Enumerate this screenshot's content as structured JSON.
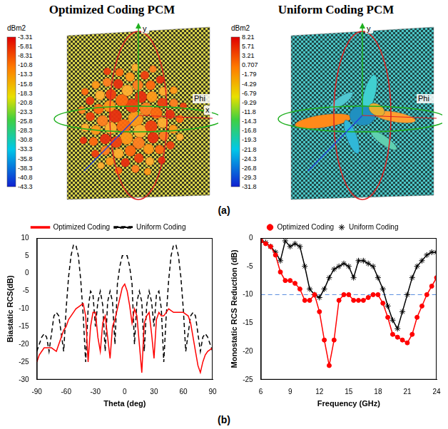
{
  "panel_labels": [
    "(a)",
    "(b)"
  ],
  "renders": [
    {
      "title": "Optimized Coding PCM",
      "axis_labels": [
        "y",
        "x",
        "Phi"
      ],
      "colorbar": {
        "unit": "dBm2",
        "range": [
          -43.3,
          -3.31
        ],
        "ticks": [
          -3.31,
          -5.81,
          -8.31,
          -10.8,
          -13.3,
          -15.8,
          -18.3,
          -20.8,
          -23.3,
          -25.8,
          -28.3,
          -30.8,
          -33.3,
          -35.8,
          -38.3,
          -40.8,
          -43.3
        ]
      }
    },
    {
      "title": "Uniform Coding PCM",
      "axis_labels": [
        "y",
        "Phi"
      ],
      "colorbar": {
        "unit": "dBm2",
        "range": [
          -31.8,
          8.21
        ],
        "ticks": [
          8.21,
          5.71,
          3.21,
          0.707,
          -1.79,
          -4.29,
          -6.79,
          -9.29,
          -11.8,
          -14.3,
          -16.8,
          -19.3,
          -21.8,
          -24.3,
          -26.8,
          -29.3,
          -31.8
        ]
      }
    }
  ],
  "chart_data": [
    {
      "type": "line",
      "x_label": "Theta (deg)",
      "y_label": "Biastatic RCS(dB)",
      "x": [
        -90,
        -87.5,
        -85,
        -82.5,
        -80,
        -77.5,
        -75,
        -72.5,
        -70,
        -67.5,
        -65,
        -62.5,
        -60,
        -57.5,
        -55,
        -52.5,
        -50,
        -47.5,
        -45,
        -42.5,
        -40,
        -37.5,
        -35,
        -32.5,
        -30,
        -27.5,
        -25,
        -22.5,
        -20,
        -17.5,
        -15,
        -12.5,
        -10,
        -7.5,
        -5,
        -2.5,
        0,
        2.5,
        5,
        7.5,
        10,
        12.5,
        15,
        17.5,
        20,
        22.5,
        25,
        27.5,
        30,
        32.5,
        35,
        37.5,
        40,
        42.5,
        45,
        47.5,
        50,
        52.5,
        55,
        57.5,
        60,
        62.5,
        65,
        67.5,
        70,
        72.5,
        75,
        77.5,
        80,
        82.5,
        85,
        87.5,
        90
      ],
      "series": [
        {
          "name": "Optimized Coding",
          "color": "#ff0000",
          "line_style": "solid",
          "marker": "none",
          "values": [
            -25,
            -23,
            -22,
            -21,
            -21,
            -21,
            -21,
            -21.5,
            -22,
            -20,
            -18,
            -16,
            -15,
            -13,
            -12,
            -11,
            -10,
            -9.5,
            -9,
            -8.5,
            -12,
            -25,
            -15,
            -11,
            -11,
            -18,
            -22,
            -14,
            -12,
            -18,
            -24,
            -15,
            -13,
            -10,
            -7,
            -4,
            -3,
            -5,
            -9,
            -14,
            -10,
            -12,
            -20,
            -28,
            -14,
            -12,
            -11,
            -17,
            -24,
            -13,
            -11,
            -12,
            -12,
            -11,
            -10,
            -10.5,
            -11,
            -11,
            -11,
            -11,
            -11,
            -11.5,
            -12,
            -14,
            -18,
            -22,
            -26,
            -28,
            -25,
            -23,
            -22,
            -21.5,
            -21
          ]
        },
        {
          "name": "Uniform Coding",
          "color": "#000000",
          "line_style": "dashed",
          "marker": "none",
          "values": [
            -22,
            -20,
            -18,
            -17,
            -18,
            -22,
            -17,
            -12,
            -11,
            -12,
            -17,
            -22,
            -10,
            -1,
            5,
            8,
            8,
            5,
            -2,
            -12,
            -25,
            -10,
            -5,
            -6,
            -15,
            -8,
            -5,
            -9,
            -22,
            -8,
            -5,
            -8,
            -20,
            -3,
            2,
            5,
            5,
            5,
            2,
            -3,
            -20,
            -8,
            -5,
            -8,
            -22,
            -9,
            -5,
            -8,
            -15,
            -6,
            -5,
            -10,
            -25,
            -12,
            -2,
            5,
            8,
            8,
            5,
            -1,
            -10,
            -22,
            -17,
            -12,
            -11,
            -12,
            -17,
            -22,
            -18,
            -17,
            -18,
            -20,
            -22
          ]
        }
      ],
      "xlim": [
        -90,
        90
      ],
      "xticks": [
        -90,
        -60,
        -30,
        0,
        30,
        60,
        90
      ],
      "ylim": [
        -30,
        10
      ],
      "yticks": [
        -30,
        -25,
        -20,
        -15,
        -10,
        -5,
        0,
        5,
        10
      ],
      "grid": false,
      "legend": "top"
    },
    {
      "type": "line",
      "x_label": "Frequency (GHz)",
      "y_label": "Monostatic RCS Reduction (dB)",
      "x": [
        6,
        6.5,
        7,
        7.5,
        8,
        8.5,
        9,
        9.5,
        10,
        10.5,
        11,
        11.5,
        12,
        12.5,
        13,
        13.5,
        14,
        14.5,
        15,
        15.5,
        16,
        16.5,
        17,
        17.5,
        18,
        18.5,
        19,
        19.5,
        20,
        20.5,
        21,
        21.5,
        22,
        22.5,
        23,
        23.5,
        24
      ],
      "series": [
        {
          "name": "Optimized Coding",
          "color": "#ff0000",
          "line_style": "solid",
          "marker": "circle",
          "values": [
            -0.5,
            -1,
            -1.5,
            -3,
            -6,
            -7.5,
            -7.5,
            -8,
            -9,
            -11,
            -11,
            -10,
            -13,
            -18,
            -22.5,
            -18,
            -11,
            -10,
            -10,
            -11,
            -11,
            -11,
            -10.5,
            -10,
            -10,
            -11.5,
            -14,
            -17,
            -17.5,
            -18,
            -18.5,
            -17,
            -14,
            -12,
            -10,
            -8.5,
            -7
          ]
        },
        {
          "name": "Uniform Coding",
          "color": "#000000",
          "line_style": "solid",
          "marker": "star",
          "values": [
            -0.5,
            -0.8,
            -1.5,
            -2.5,
            -4,
            -0.5,
            -1.5,
            -1,
            -1.5,
            -5,
            -9,
            -10,
            -10.5,
            -9,
            -7,
            -5.5,
            -5,
            -4.5,
            -5,
            -7,
            -4,
            -4,
            -4.5,
            -5,
            -7,
            -9,
            -12,
            -14.5,
            -16,
            -13,
            -10,
            -7,
            -5,
            -4,
            -3,
            -2.5,
            -2.5
          ]
        }
      ],
      "threshold": -10,
      "xlim": [
        6,
        24
      ],
      "xticks": [
        6,
        9,
        12,
        15,
        18,
        21,
        24
      ],
      "ylim": [
        -25,
        0
      ],
      "yticks": [
        -25,
        -20,
        -15,
        -10,
        -5,
        0
      ],
      "grid": false,
      "legend": "top"
    }
  ]
}
